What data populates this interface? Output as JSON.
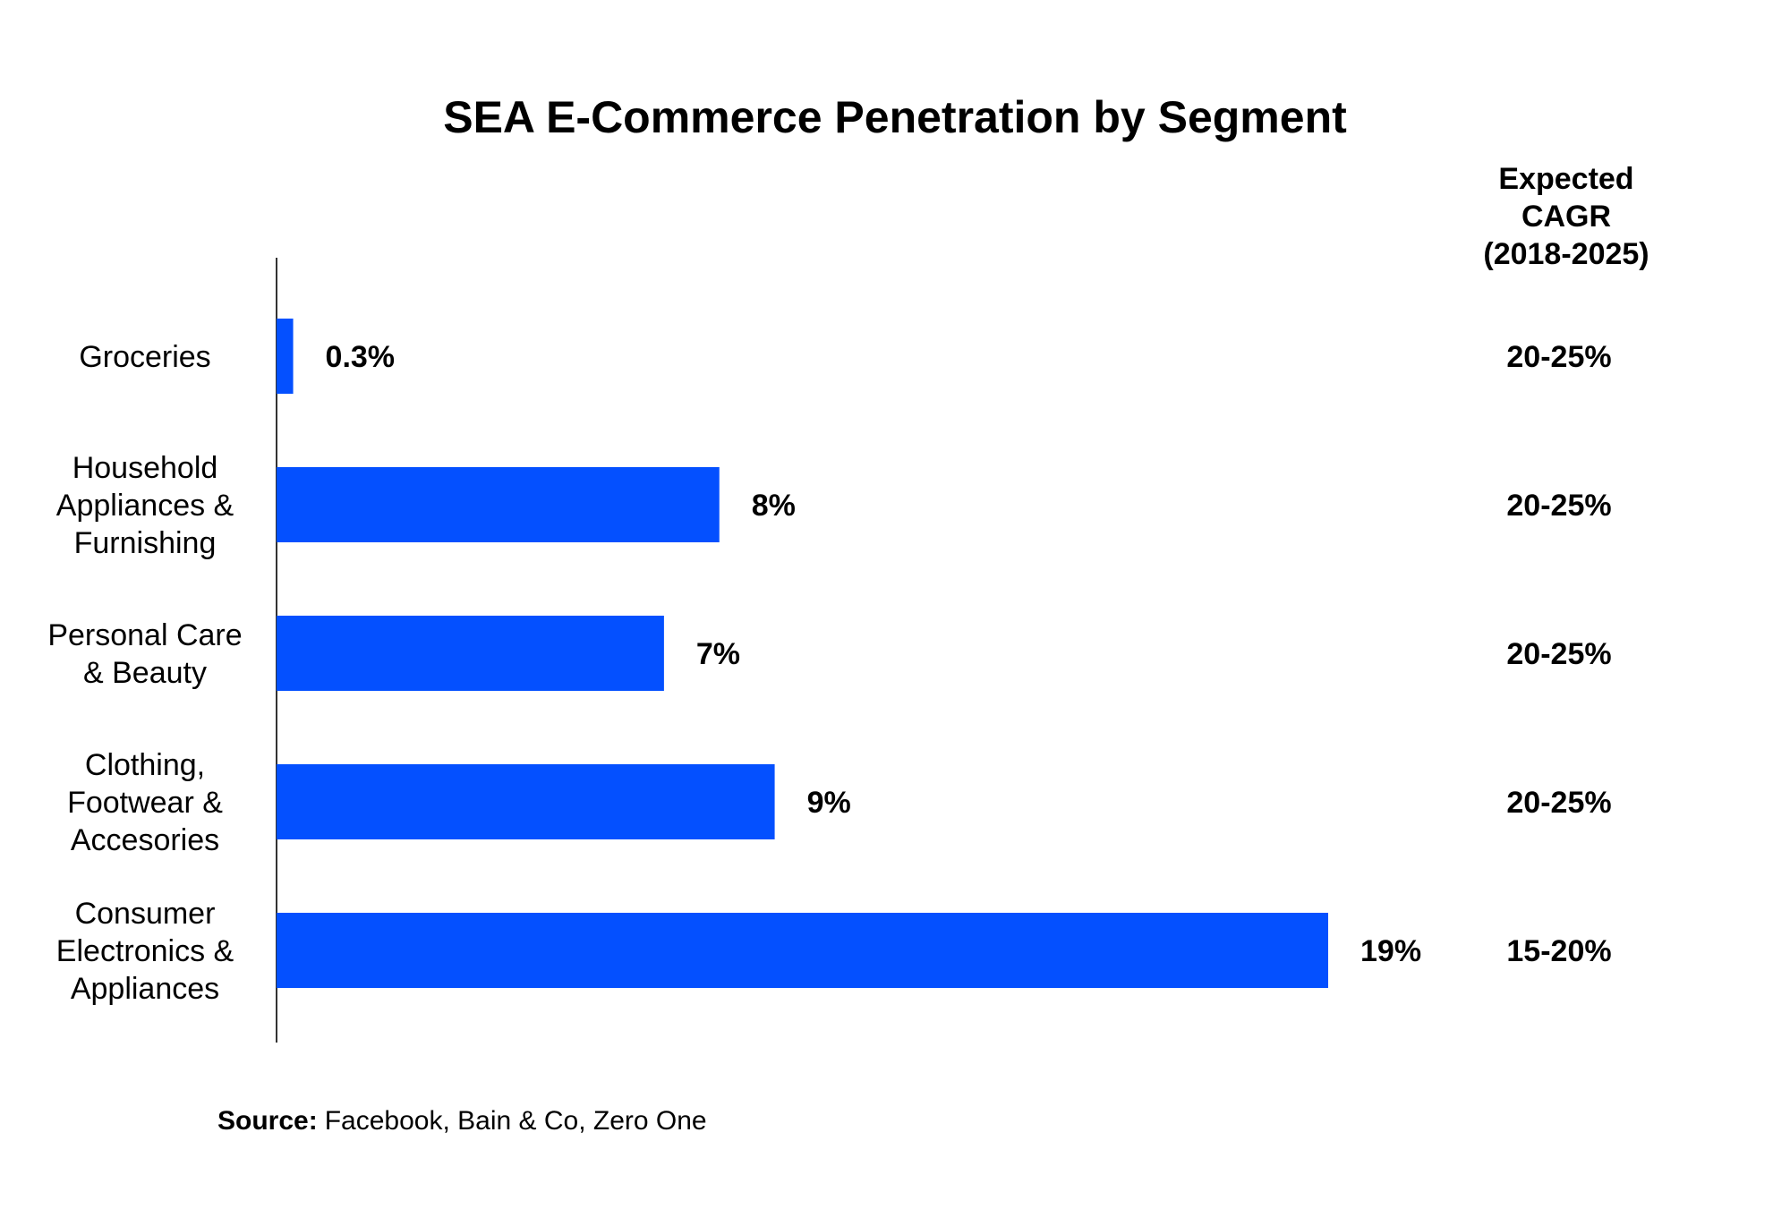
{
  "chart_data": {
    "type": "bar",
    "orientation": "horizontal",
    "title": "SEA E-Commerce Penetration by Segment",
    "categories": [
      [
        "Groceries"
      ],
      [
        "Household",
        "Appliances &",
        "Furnishing"
      ],
      [
        "Personal Care",
        "& Beauty"
      ],
      [
        "Clothing,",
        "Footwear &",
        "Accesories"
      ],
      [
        "Consumer",
        "Electronics &",
        "Appliances"
      ]
    ],
    "values": [
      0.3,
      8,
      7,
      9,
      19
    ],
    "value_labels": [
      "0.3%",
      "8%",
      "7%",
      "9%",
      "19%"
    ],
    "xlim": [
      0,
      19
    ],
    "bar_color": "#0450FF",
    "cagr_header": [
      "Expected",
      "CAGR",
      "(2018-2025)"
    ],
    "cagr_values": [
      "20-25%",
      "20-25%",
      "20-25%",
      "20-25%",
      "15-20%"
    ],
    "grid": false,
    "legend": "none"
  },
  "source": {
    "label": "Source:",
    "text": "Facebook, Bain & Co, Zero One"
  }
}
